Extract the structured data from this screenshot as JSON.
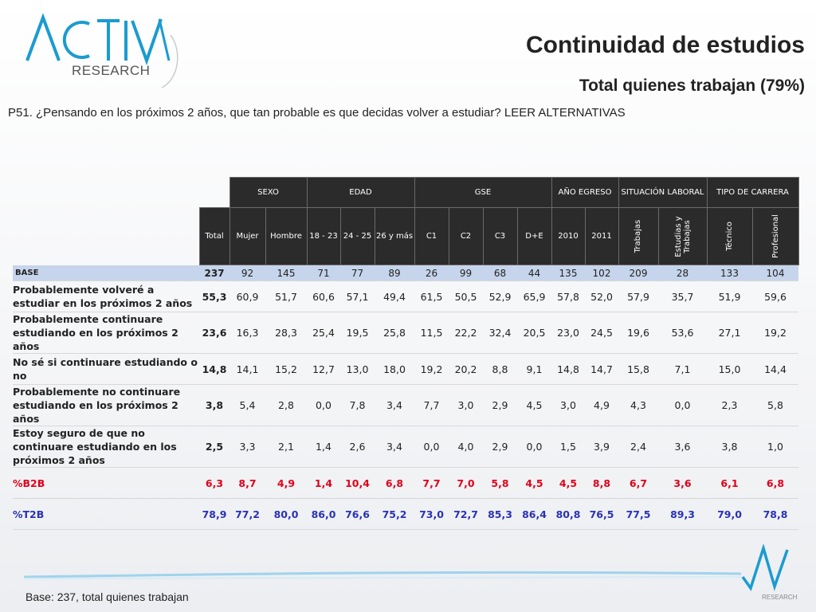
{
  "brand": {
    "logo_main": "ACTIVA",
    "logo_sub": "RESEARCH",
    "footer_mark": "RESEARCH",
    "accent_color": "#1b9bd1"
  },
  "header": {
    "title": "Continuidad de estudios",
    "subtitle": "Total quienes trabajan (79%)"
  },
  "question": "P51. ¿Pensando en los próximos 2 años, que tan probable es que decidas volver a estudiar? LEER ALTERNATIVAS",
  "table": {
    "groups": {
      "sexo": "SEXO",
      "edad": "EDAD",
      "gse": "GSE",
      "egreso": "AÑO EGRESO",
      "situacion": "SITUACIÓN LABORAL",
      "carrera": "TIPO DE CARRERA"
    },
    "columns": [
      "Total",
      "Mujer",
      "Hombre",
      "18 - 23",
      "24 - 25",
      "26 y más",
      "C1",
      "C2",
      "C3",
      "D+E",
      "2010",
      "2011",
      "Trabajas",
      "Estudias y Trabajas",
      "Técnico",
      "Profesional"
    ],
    "base": {
      "label": "BASE",
      "values": [
        "237",
        "92",
        "145",
        "71",
        "77",
        "89",
        "26",
        "99",
        "68",
        "44",
        "135",
        "102",
        "209",
        "28",
        "133",
        "104"
      ]
    },
    "rows": [
      {
        "label": "Probablemente volveré a estudiar en los próximos 2 años",
        "values": [
          "55,3",
          "60,9",
          "51,7",
          "60,6",
          "57,1",
          "49,4",
          "61,5",
          "50,5",
          "52,9",
          "65,9",
          "57,8",
          "52,0",
          "57,9",
          "35,7",
          "51,9",
          "59,6"
        ]
      },
      {
        "label": "Probablemente continuare estudiando en los próximos 2 años",
        "values": [
          "23,6",
          "16,3",
          "28,3",
          "25,4",
          "19,5",
          "25,8",
          "11,5",
          "22,2",
          "32,4",
          "20,5",
          "23,0",
          "24,5",
          "19,6",
          "53,6",
          "27,1",
          "19,2"
        ]
      },
      {
        "label": "No sé si continuare estudiando o no",
        "values": [
          "14,8",
          "14,1",
          "15,2",
          "12,7",
          "13,0",
          "18,0",
          "19,2",
          "20,2",
          "8,8",
          "9,1",
          "14,8",
          "14,7",
          "15,8",
          "7,1",
          "15,0",
          "14,4"
        ]
      },
      {
        "label": "Probablemente no continuare estudiando en los próximos 2 años",
        "values": [
          "3,8",
          "5,4",
          "2,8",
          "0,0",
          "7,8",
          "3,4",
          "7,7",
          "3,0",
          "2,9",
          "4,5",
          "3,0",
          "4,9",
          "4,3",
          "0,0",
          "2,3",
          "5,8"
        ]
      },
      {
        "label": "Estoy seguro de que no continuare estudiando en los próximos 2 años",
        "values": [
          "2,5",
          "3,3",
          "2,1",
          "1,4",
          "2,6",
          "3,4",
          "0,0",
          "4,0",
          "2,9",
          "0,0",
          "1,5",
          "3,9",
          "2,4",
          "3,6",
          "3,8",
          "1,0"
        ]
      }
    ],
    "b2b": {
      "label": "%B2B",
      "color": "#e0001a",
      "values": [
        "6,3",
        "8,7",
        "4,9",
        "1,4",
        "10,4",
        "6,8",
        "7,7",
        "7,0",
        "5,8",
        "4,5",
        "4,5",
        "8,8",
        "6,7",
        "3,6",
        "6,1",
        "6,8"
      ]
    },
    "t2b": {
      "label": "%T2B",
      "color": "#2a32b5",
      "values": [
        "78,9",
        "77,2",
        "80,0",
        "86,0",
        "76,6",
        "75,2",
        "73,0",
        "72,7",
        "85,3",
        "86,4",
        "80,8",
        "76,5",
        "77,5",
        "89,3",
        "79,0",
        "78,8"
      ]
    }
  },
  "footnote": "Base: 237, total quienes trabajan"
}
